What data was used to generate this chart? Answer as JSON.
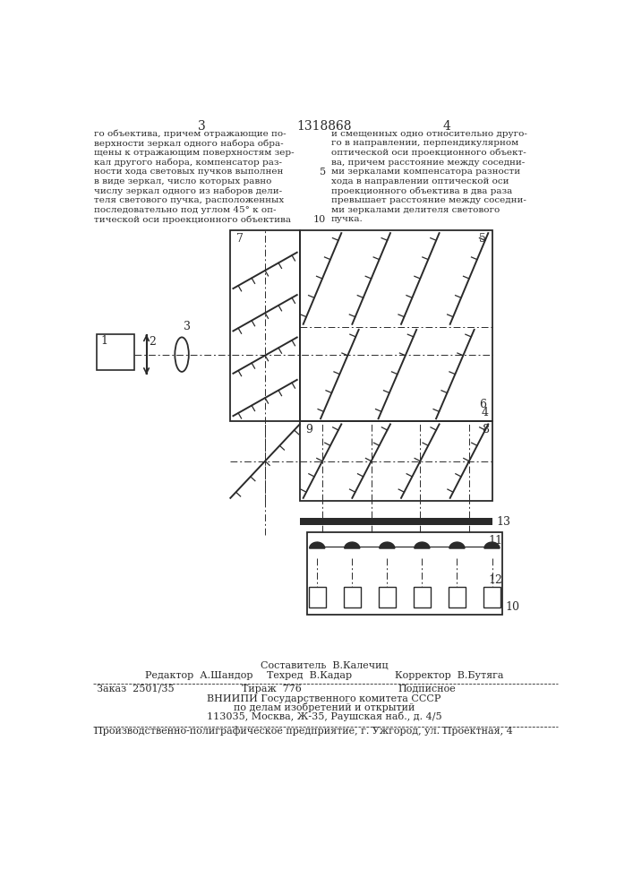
{
  "page_color": "#ffffff",
  "text_color": "#2a2a2a",
  "header_num_left": "3",
  "header_num_center": "1318868",
  "header_num_right": "4",
  "col1_lines": [
    "го объектива, причем отражающие по-",
    "верхности зеркал одного набора обра-",
    "щены к отражающим поверхностям зер-",
    "кал другого набора, компенсатор раз-",
    "ности хода световых пучков выполнен",
    "в виде зеркал, число которых равно",
    "числу зеркал одного из наборов дели-",
    "теля светового пучка, расположенных",
    "последовательно под углом 45° к оп-",
    "тической оси проекционного объектива"
  ],
  "col2_lines": [
    "и смещенных одно относительно друго-",
    "го в направлении, перпендикулярном",
    "оптической оси проекционного объект-",
    "ва, причем расстояние между соседни-",
    "ми зеркалами компенсатора разности",
    "хода в направлении оптической оси",
    "проекционного объектива в два раза",
    "превышает расстояние между соседни-",
    "ми зеркалами делителя светового",
    "пучка."
  ],
  "footer_sostavitel": "Составитель  В.Калечиц",
  "footer_editor": "Редактор  А.Шандор",
  "footer_techred": "Техред  В.Кадар",
  "footer_corrector": "Корректор  В.Бутяга",
  "footer_order": "Заказ  2501/35",
  "footer_tirazh": "Тираж  776",
  "footer_podpisnoe": "Подписное",
  "footer_vniiipi": "ВНИИПИ Государственного комитета СССР",
  "footer_po_delam": "по делам изобретений и открытий",
  "footer_address": "113035, Москва, Ж-35, Раушская наб., д. 4/5",
  "footer_factory": "Производственно-полиграфическое предприятие, г. Ужгород, ул. Проектная, 4"
}
